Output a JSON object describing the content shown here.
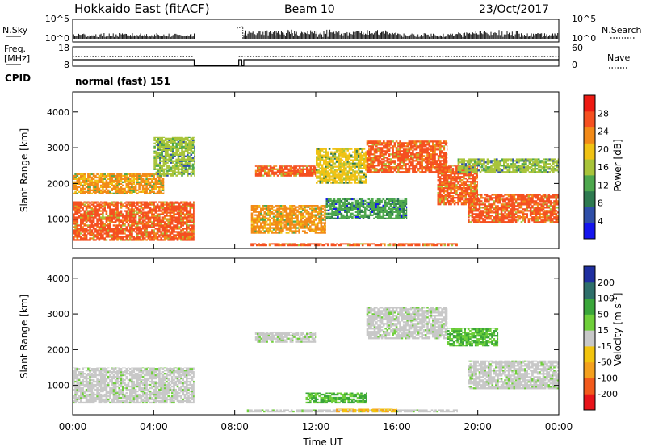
{
  "header": {
    "station": "Hokkaido East (fitACF)",
    "beam": "Beam 10",
    "date": "23/Oct/2017"
  },
  "status": {
    "nsky_label": "N.Sky",
    "nsky_ticks": [
      "10^5",
      "10^0"
    ],
    "nsearch_label": "N.Search",
    "freq_label_1": "Freq.",
    "freq_label_2": "[MHz]",
    "freq_ticks": [
      "18",
      "8"
    ],
    "nave_label": "Nave",
    "nave_ticks": [
      "60",
      "0"
    ],
    "cpid_label": "CPID",
    "cpid_value": "normal (fast) 151"
  },
  "colors": {
    "power": [
      "#1515ee",
      "#2f4fa8",
      "#2e7a50",
      "#4ea84e",
      "#a8c43a",
      "#f0c214",
      "#f28a18",
      "#f55020",
      "#ee1a12"
    ],
    "velocity": [
      "#e8141a",
      "#f25a1c",
      "#f4a01e",
      "#f2c40e",
      "#c8c8c8",
      "#6fcf3a",
      "#3aa63a",
      "#2e6f6a",
      "#1f2fa0"
    ],
    "ground": "#c8c8c8"
  },
  "chart_data": [
    {
      "type": "heatmap",
      "title": "",
      "xlabel": "Time UT",
      "ylabel": "Slant Range [km]",
      "xlim": [
        0,
        24
      ],
      "ylim": [
        180,
        4560
      ],
      "x_tick_labels": [
        "00:00",
        "04:00",
        "08:00",
        "12:00",
        "16:00",
        "20:00",
        "00:00"
      ],
      "x_tick_values": [
        0,
        4,
        8,
        12,
        16,
        20,
        24
      ],
      "y_ticks": [
        1000,
        2000,
        3000,
        4000
      ],
      "colorbar": {
        "label": "Power [dB]",
        "ticks": [
          4,
          8,
          12,
          16,
          20,
          24,
          28
        ],
        "range": [
          0,
          32
        ]
      },
      "data_gap_hours": [
        6.0,
        8.4
      ],
      "regions": [
        {
          "t0": 0.0,
          "t1": 6.0,
          "r0": 400,
          "r1": 1500,
          "power": 28
        },
        {
          "t0": 0.0,
          "t1": 4.5,
          "r0": 1700,
          "r1": 2300,
          "power": 22
        },
        {
          "t0": 4.0,
          "t1": 6.0,
          "r0": 2200,
          "r1": 3300,
          "power": 16
        },
        {
          "t0": 8.6,
          "t1": 19.0,
          "r0": 250,
          "r1": 330,
          "power": 28
        },
        {
          "t0": 8.8,
          "t1": 12.5,
          "r0": 600,
          "r1": 1400,
          "power": 24
        },
        {
          "t0": 9.0,
          "t1": 12.0,
          "r0": 2200,
          "r1": 2500,
          "power": 28
        },
        {
          "t0": 12.0,
          "t1": 14.5,
          "r0": 2000,
          "r1": 3000,
          "power": 20
        },
        {
          "t0": 14.5,
          "t1": 18.5,
          "r0": 2300,
          "r1": 3200,
          "power": 28
        },
        {
          "t0": 18.0,
          "t1": 20.0,
          "r0": 1400,
          "r1": 2500,
          "power": 28
        },
        {
          "t0": 19.5,
          "t1": 24.0,
          "r0": 900,
          "r1": 1700,
          "power": 28
        },
        {
          "t0": 19.0,
          "t1": 24.0,
          "r0": 2300,
          "r1": 2700,
          "power": 16
        },
        {
          "t0": 12.5,
          "t1": 16.5,
          "r0": 1000,
          "r1": 1600,
          "power": 12
        }
      ]
    },
    {
      "type": "heatmap",
      "title": "",
      "xlabel": "Time UT",
      "ylabel": "Slant Range [km]",
      "xlim": [
        0,
        24
      ],
      "ylim": [
        180,
        4560
      ],
      "x_tick_labels": [
        "00:00",
        "04:00",
        "08:00",
        "12:00",
        "16:00",
        "20:00",
        "00:00"
      ],
      "x_tick_values": [
        0,
        4,
        8,
        12,
        16,
        20,
        24
      ],
      "y_ticks": [
        1000,
        2000,
        3000,
        4000
      ],
      "colorbar": {
        "label": "Velocity [m s^-1]",
        "ticks": [
          -200,
          -100,
          -50,
          -15,
          15,
          50,
          100,
          200
        ],
        "levels": [
          "-250",
          "-200",
          "-100",
          "-50",
          "-15",
          "15",
          "50",
          "100",
          "200",
          "250"
        ]
      },
      "data_gap_hours": [
        6.0,
        8.4
      ],
      "regions": [
        {
          "t0": 0.0,
          "t1": 6.0,
          "r0": 500,
          "r1": 1500,
          "velocity": 0
        },
        {
          "t0": 8.6,
          "t1": 19.0,
          "r0": 250,
          "r1": 330,
          "velocity": 0
        },
        {
          "t0": 9.0,
          "t1": 12.0,
          "r0": 2200,
          "r1": 2500,
          "velocity": 0
        },
        {
          "t0": 14.5,
          "t1": 18.5,
          "r0": 2300,
          "r1": 3200,
          "velocity": 0
        },
        {
          "t0": 19.5,
          "t1": 24.0,
          "r0": 900,
          "r1": 1700,
          "velocity": 0
        },
        {
          "t0": 11.5,
          "t1": 14.5,
          "r0": 500,
          "r1": 800,
          "velocity": 40
        },
        {
          "t0": 18.5,
          "t1": 21.0,
          "r0": 2100,
          "r1": 2600,
          "velocity": 40
        },
        {
          "t0": 13.0,
          "t1": 16.0,
          "r0": 250,
          "r1": 350,
          "velocity": -40
        }
      ]
    }
  ]
}
